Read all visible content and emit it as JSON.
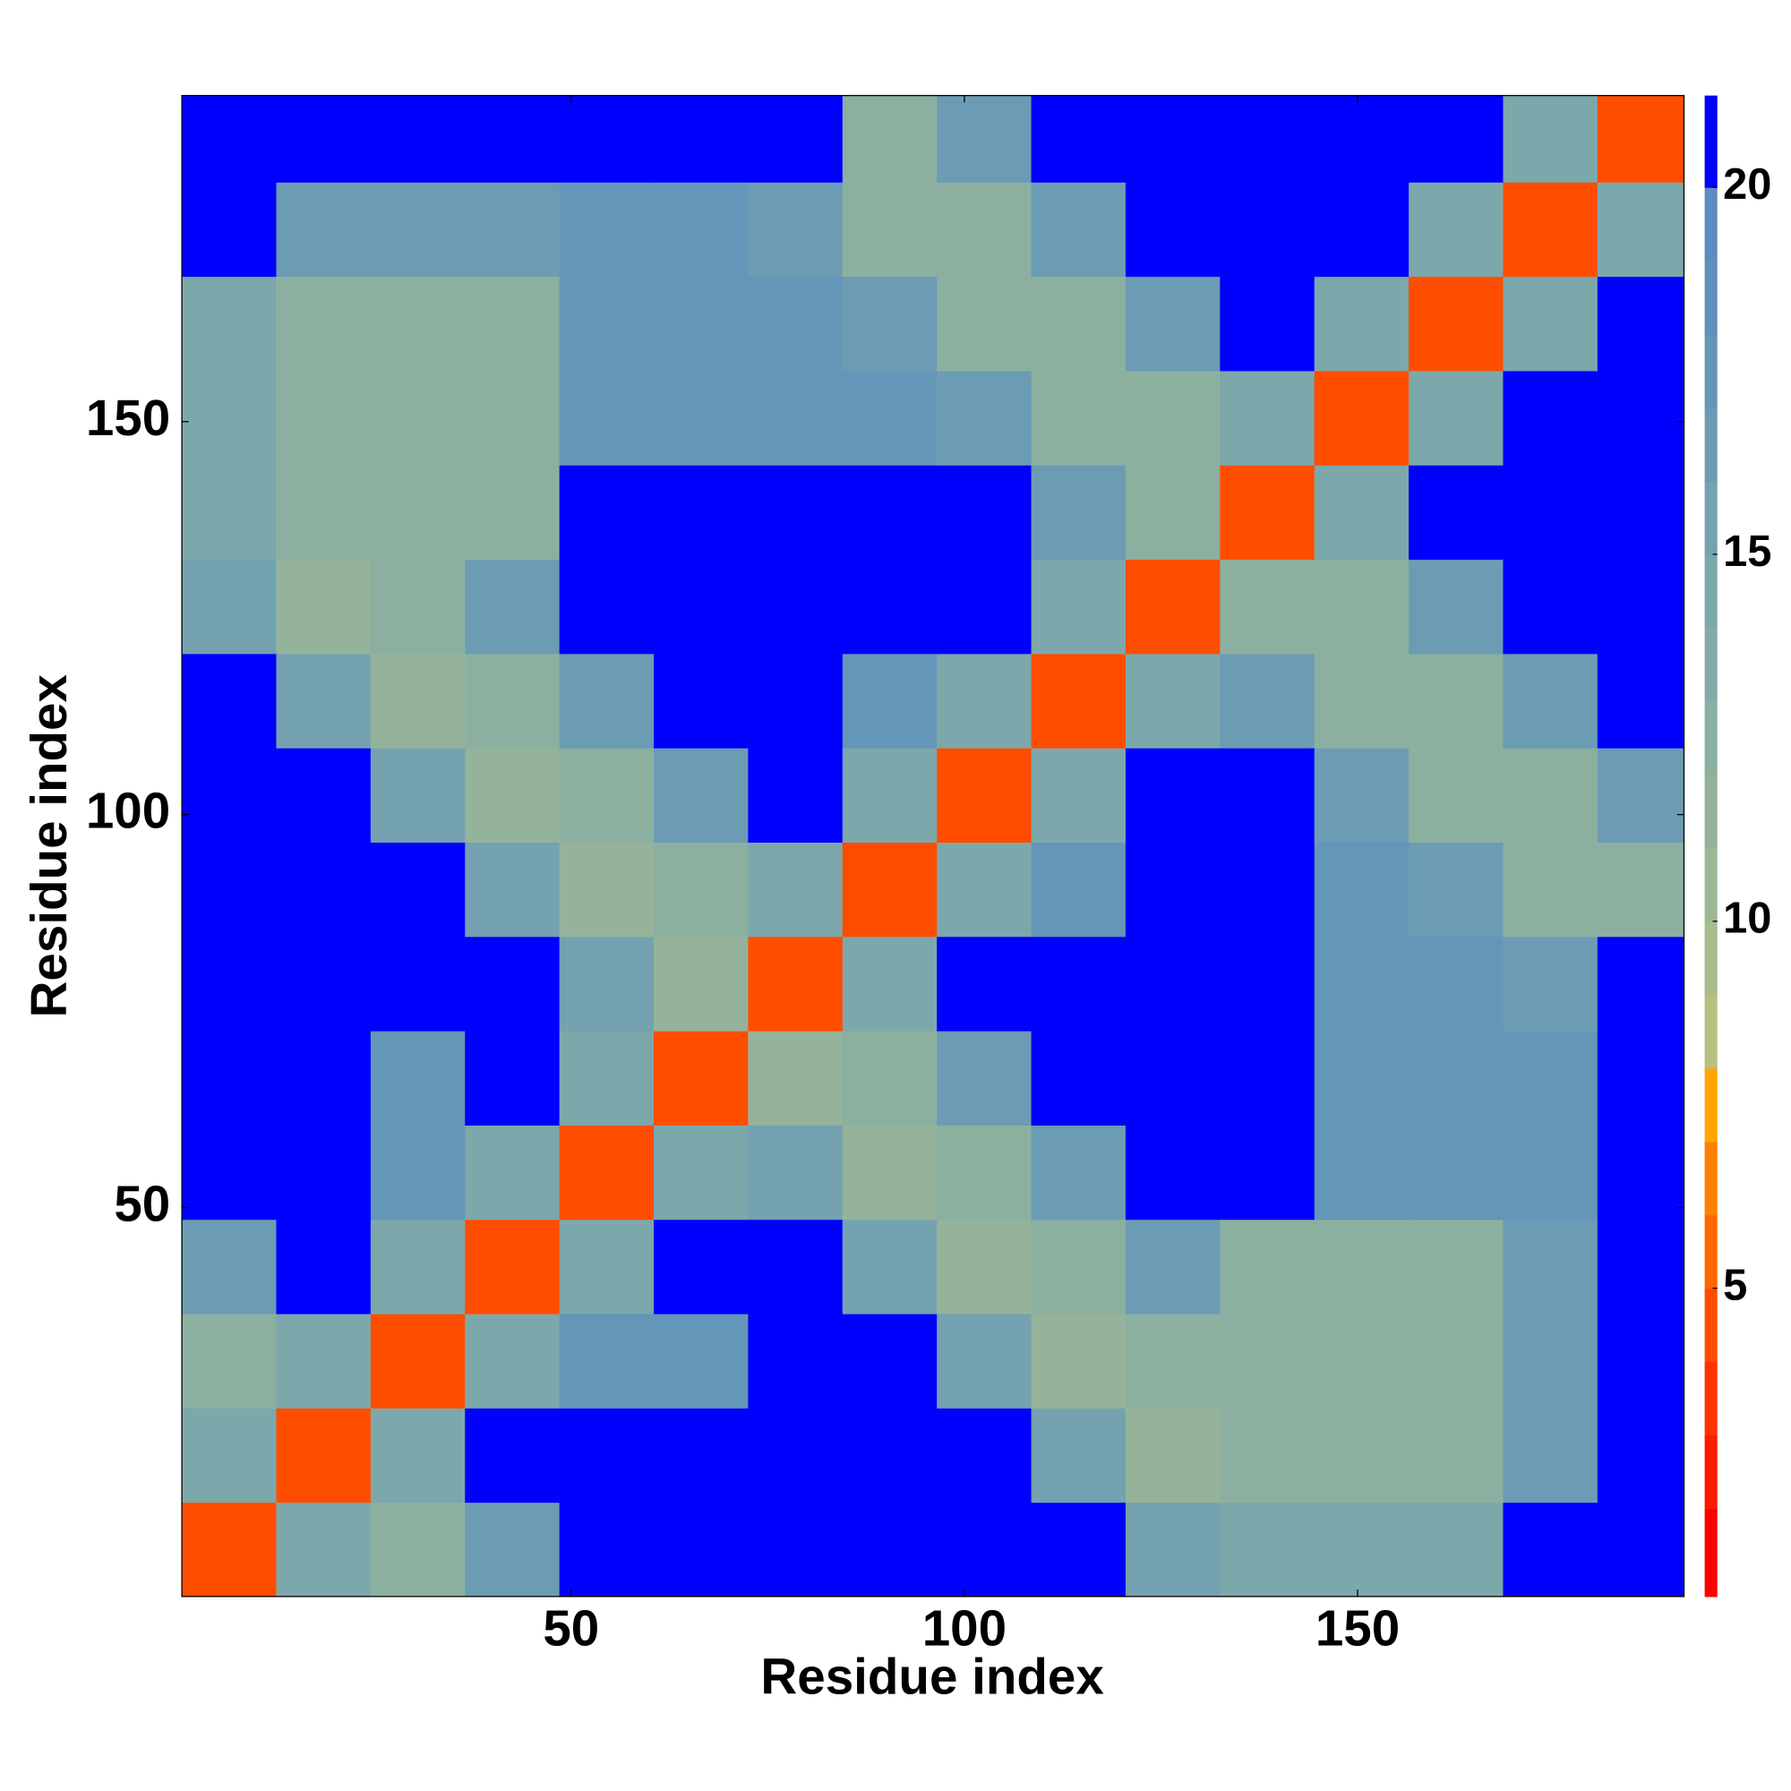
{
  "chart_data": {
    "type": "heatmap",
    "xlabel": "Residue index",
    "ylabel": "Residue index",
    "x_bins": [
      0.5,
      12.5,
      24.5,
      36.5,
      48.5,
      60.5,
      72.5,
      84.5,
      96.5,
      108.5,
      120.5,
      132.5,
      144.5,
      156.5,
      168.5,
      180.5,
      191.5
    ],
    "y_bins": [
      0.5,
      12.5,
      24.5,
      36.5,
      48.5,
      60.5,
      72.5,
      84.5,
      96.5,
      108.5,
      120.5,
      132.5,
      144.5,
      156.5,
      168.5,
      180.5,
      191.5
    ],
    "xlim": [
      0.5,
      191.5
    ],
    "ylim": [
      0.5,
      191.5
    ],
    "xticks": [
      50,
      100,
      150
    ],
    "yticks": [
      50,
      100,
      150
    ],
    "z": [
      [
        5,
        15,
        13,
        17,
        21,
        21,
        21,
        21,
        21,
        21,
        16,
        15,
        15,
        15,
        21,
        21
      ],
      [
        15,
        5,
        15,
        21,
        21,
        21,
        21,
        21,
        21,
        16,
        12,
        13,
        13,
        13,
        17,
        21
      ],
      [
        13,
        15,
        5,
        15,
        18,
        18,
        21,
        21,
        16,
        12,
        13,
        13,
        13,
        13,
        17,
        21
      ],
      [
        17,
        21,
        15,
        5,
        15,
        21,
        21,
        16,
        12,
        13,
        17,
        13,
        13,
        13,
        17,
        21
      ],
      [
        21,
        21,
        18,
        15,
        5,
        15,
        16,
        12,
        13,
        17,
        21,
        21,
        18,
        18,
        18,
        21
      ],
      [
        21,
        21,
        18,
        21,
        15,
        5,
        12,
        13,
        17,
        21,
        21,
        21,
        18,
        18,
        18,
        21
      ],
      [
        21,
        21,
        21,
        21,
        16,
        12,
        5,
        15,
        21,
        21,
        21,
        21,
        18,
        18,
        17,
        21
      ],
      [
        21,
        21,
        21,
        16,
        12,
        13,
        15,
        5,
        15,
        18,
        21,
        21,
        18,
        17,
        13,
        13
      ],
      [
        21,
        21,
        16,
        12,
        13,
        17,
        21,
        15,
        5,
        15,
        21,
        21,
        17,
        13,
        13,
        17
      ],
      [
        21,
        16,
        12,
        13,
        17,
        21,
        21,
        18,
        15,
        5,
        15,
        17,
        13,
        13,
        17,
        21
      ],
      [
        16,
        12,
        13,
        17,
        21,
        21,
        21,
        21,
        21,
        15,
        5,
        13,
        13,
        17,
        21,
        21
      ],
      [
        15,
        13,
        13,
        13,
        21,
        21,
        21,
        21,
        21,
        17,
        13,
        5,
        15,
        21,
        21,
        21
      ],
      [
        15,
        13,
        13,
        13,
        18,
        18,
        18,
        18,
        17,
        13,
        13,
        15,
        5,
        15,
        21,
        21
      ],
      [
        15,
        13,
        13,
        13,
        18,
        18,
        18,
        17,
        13,
        13,
        17,
        21,
        15,
        5,
        15,
        21
      ],
      [
        21,
        17,
        17,
        17,
        18,
        18,
        17,
        13,
        13,
        17,
        21,
        21,
        21,
        15,
        5,
        15
      ],
      [
        21,
        21,
        21,
        21,
        21,
        21,
        21,
        13,
        17,
        21,
        21,
        21,
        21,
        21,
        15,
        5
      ]
    ],
    "colorbar": {
      "levels": [
        0.8,
        2,
        3,
        4,
        5,
        6,
        7,
        8,
        9,
        10,
        11,
        12,
        13,
        14,
        15,
        16,
        17,
        18,
        19,
        20,
        21.25
      ],
      "colors": [
        "#ff0000",
        "#ff1a00",
        "#ff3300",
        "#ff4d00",
        "#ff6600",
        "#ff8000",
        "#ffa500",
        "#b8c080",
        "#a8bc8c",
        "#9cb894",
        "#94b39a",
        "#8cb0a0",
        "#84aca6",
        "#7ca8ac",
        "#74a2b0",
        "#6c9cb4",
        "#6496b8",
        "#6090bc",
        "#5c8cc0",
        "#0000ff"
      ],
      "ticks": [
        5,
        10,
        15,
        20
      ]
    }
  }
}
